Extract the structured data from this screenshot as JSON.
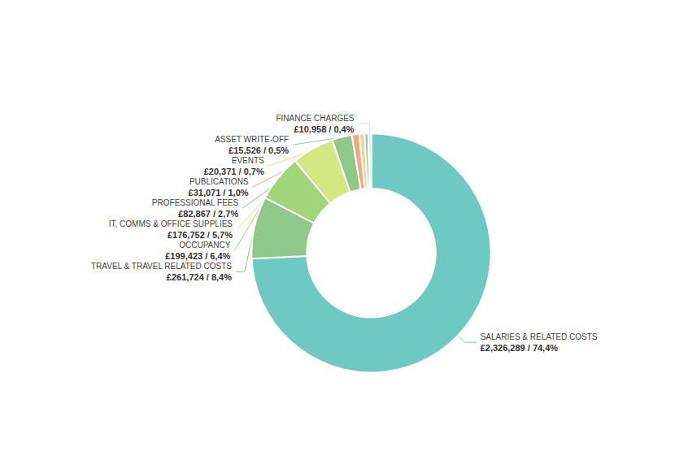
{
  "chart_data": {
    "type": "donut",
    "categories": [
      "SALARIES & RELATED COSTS",
      "TRAVEL & TRAVEL RELATED COSTS",
      "OCCUPANCY",
      "IT, COMMS & OFFICE SUPPLIES",
      "PROFESSIONAL FEES",
      "PUBLICATIONS",
      "EVENTS",
      "ASSET WRITE-OFF",
      "FINANCE CHARGES"
    ],
    "values": [
      74.4,
      8.4,
      6.4,
      5.7,
      2.7,
      1.0,
      0.7,
      0.5,
      0.4
    ],
    "value_labels": [
      "£2,326,289 / 74,4%",
      "£261,724 / 8,4%",
      "£199,423 / 6,4%",
      "£176,752 / 5,7%",
      "£82,867 / 2,7%",
      "£31,071 / 1,0%",
      "£20,371 / 0,7%",
      "£15,526 / 0,5%",
      "£10,958 / 0,4%"
    ],
    "colors": [
      "#6ec9c2",
      "#8fc98a",
      "#a2d47a",
      "#d4e882",
      "#8fc98a",
      "#f2a882",
      "#e8d888",
      "#8ec8c0",
      "#d4e8c8"
    ],
    "data_labels": true
  }
}
